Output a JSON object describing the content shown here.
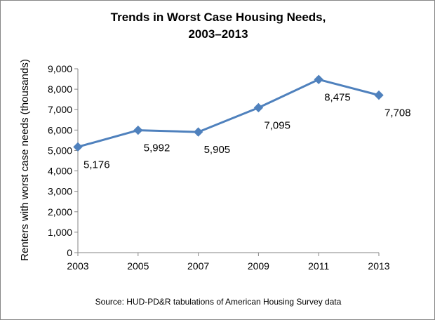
{
  "chart_data": {
    "type": "line",
    "title_line1": "Trends in Worst Case Housing Needs,",
    "title_line2": "2003–2013",
    "xlabel": "",
    "ylabel": "Renters with  worst case needs  (thousands)",
    "categories": [
      "2003",
      "2005",
      "2007",
      "2009",
      "2011",
      "2013"
    ],
    "series": [
      {
        "values": [
          5176,
          5992,
          5905,
          7095,
          8475,
          7708
        ],
        "data_labels": [
          "5,176",
          "5,992",
          "5,905",
          "7,095",
          "8,475",
          "7,708"
        ],
        "color": "#4F81BD",
        "marker": "diamond"
      }
    ],
    "ylim": [
      0,
      9000
    ],
    "yticks": [
      0,
      1000,
      2000,
      3000,
      4000,
      5000,
      6000,
      7000,
      8000,
      9000
    ],
    "ytick_labels": [
      "0",
      "1,000",
      "2,000",
      "3,000",
      "4,000",
      "5,000",
      "6,000",
      "7,000",
      "8,000",
      "9,000"
    ],
    "grid": false,
    "legend": "none"
  },
  "source_note": "Source: HUD-PD&R tabulations of American Housing Survey data",
  "colors": {
    "series": "#4F81BD",
    "axis": "#868686",
    "frame": "#868686"
  }
}
